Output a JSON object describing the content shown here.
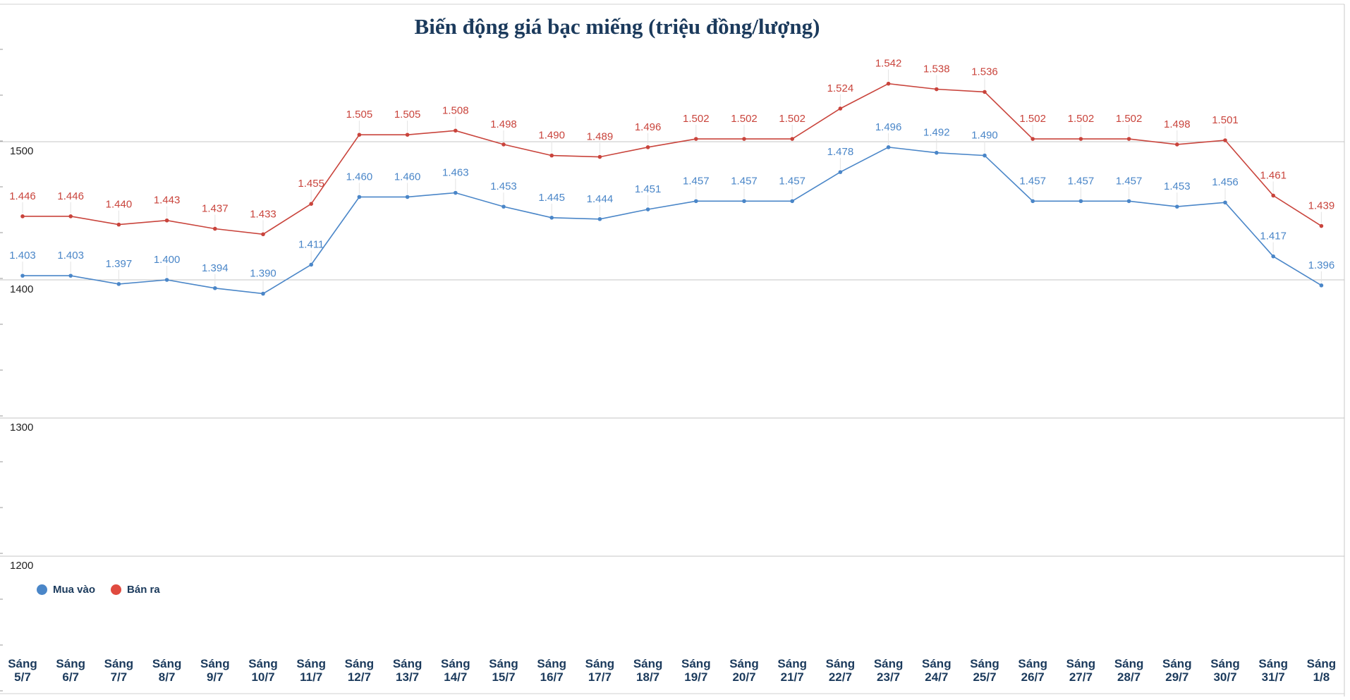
{
  "chart_data": {
    "type": "line",
    "title": "Biến động giá bạc miếng (triệu đồng/lượng)",
    "xlabel": "",
    "ylabel": "",
    "ylim": [
      1150,
      1600
    ],
    "yticks": [
      1200,
      1300,
      1400,
      1500
    ],
    "grid": true,
    "legend_position": "bottom-left",
    "categories": [
      [
        "Sáng",
        "5/7"
      ],
      [
        "Sáng",
        "6/7"
      ],
      [
        "Sáng",
        "7/7"
      ],
      [
        "Sáng",
        "8/7"
      ],
      [
        "Sáng",
        "9/7"
      ],
      [
        "Sáng",
        "10/7"
      ],
      [
        "Sáng",
        "11/7"
      ],
      [
        "Sáng",
        "12/7"
      ],
      [
        "Sáng",
        "13/7"
      ],
      [
        "Sáng",
        "14/7"
      ],
      [
        "Sáng",
        "15/7"
      ],
      [
        "Sáng",
        "16/7"
      ],
      [
        "Sáng",
        "17/7"
      ],
      [
        "Sáng",
        "18/7"
      ],
      [
        "Sáng",
        "19/7"
      ],
      [
        "Sáng",
        "20/7"
      ],
      [
        "Sáng",
        "21/7"
      ],
      [
        "Sáng",
        "22/7"
      ],
      [
        "Sáng",
        "23/7"
      ],
      [
        "Sáng",
        "24/7"
      ],
      [
        "Sáng",
        "25/7"
      ],
      [
        "Sáng",
        "26/7"
      ],
      [
        "Sáng",
        "27/7"
      ],
      [
        "Sáng",
        "28/7"
      ],
      [
        "Sáng",
        "29/7"
      ],
      [
        "Sáng",
        "30/7"
      ],
      [
        "Sáng",
        "31/7"
      ],
      [
        "Sáng",
        "1/8"
      ]
    ],
    "series": [
      {
        "name": "Mua vào",
        "color": "#4a86c8",
        "values": [
          1403,
          1403,
          1397,
          1400,
          1394,
          1390,
          1411,
          1460,
          1460,
          1463,
          1453,
          1445,
          1444,
          1451,
          1457,
          1457,
          1457,
          1478,
          1496,
          1492,
          1490,
          1457,
          1457,
          1457,
          1453,
          1456,
          1417,
          1396
        ],
        "labels": [
          "1.403",
          "1.403",
          "1.397",
          "1.400",
          "1.394",
          "1.390",
          "1.411",
          "1.460",
          "1.460",
          "1.463",
          "1.453",
          "1.445",
          "1.444",
          "1.451",
          "1.457",
          "1.457",
          "1.457",
          "1.478",
          "1.496",
          "1.492",
          "1.490",
          "1.457",
          "1.457",
          "1.457",
          "1.453",
          "1.456",
          "1.417",
          "1.396"
        ]
      },
      {
        "name": "Bán ra",
        "color": "#c9443c",
        "values": [
          1446,
          1446,
          1440,
          1443,
          1437,
          1433,
          1455,
          1505,
          1505,
          1508,
          1498,
          1490,
          1489,
          1496,
          1502,
          1502,
          1502,
          1524,
          1542,
          1538,
          1536,
          1502,
          1502,
          1502,
          1498,
          1501,
          1461,
          1439
        ],
        "labels": [
          "1.446",
          "1.446",
          "1.440",
          "1.443",
          "1.437",
          "1.433",
          "1.455",
          "1.505",
          "1.505",
          "1.508",
          "1.498",
          "1.490",
          "1.489",
          "1.496",
          "1.502",
          "1.502",
          "1.502",
          "1.524",
          "1.542",
          "1.538",
          "1.536",
          "1.502",
          "1.502",
          "1.502",
          "1.498",
          "1.501",
          "1.461",
          "1.439"
        ]
      }
    ],
    "legend_colors": {
      "buy": "#4a86c8",
      "sell": "#e04a3f"
    }
  }
}
